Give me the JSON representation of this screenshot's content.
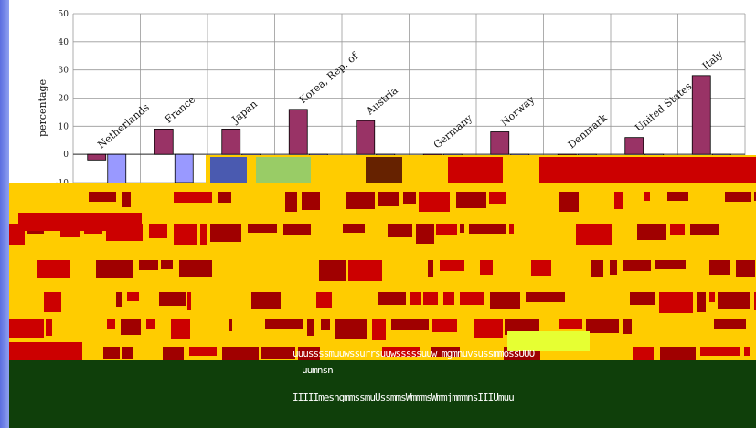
{
  "chart_data": {
    "type": "bar",
    "title": "",
    "xlabel": "",
    "ylabel": "percentage",
    "ylim": [
      -10,
      50
    ],
    "yticks": [
      -10,
      0,
      10,
      20,
      30,
      40,
      50
    ],
    "grid": true,
    "categories": [
      "Netherlands",
      "France",
      "Japan",
      "Korea, Rep. of",
      "Austria",
      "Germany",
      "Norway",
      "Denmark",
      "United States",
      "Italy"
    ],
    "series": [
      {
        "values": [
          -2,
          9,
          9,
          16,
          12,
          0,
          8,
          0,
          6,
          28
        ],
        "color": "#993366"
      },
      {
        "values": [
          -12,
          -10,
          -10,
          0,
          0,
          0,
          0,
          0,
          0,
          0
        ],
        "color": "#9999ff"
      }
    ]
  },
  "overlay": {
    "band_colors": [
      "#ffcc00",
      "#cc0000",
      "#a00000"
    ],
    "footer_color": "#0f3f0a",
    "noise_row1": "uuussssmuuwssurrsuuwsssssuuw  mgmnuvsussmmossUUO",
    "noise_row2": "uumnsn",
    "noise_row3": "IIIIImesngmmssmuUssmmsWmmmsWmmjmmmnsIIIUmuu"
  }
}
